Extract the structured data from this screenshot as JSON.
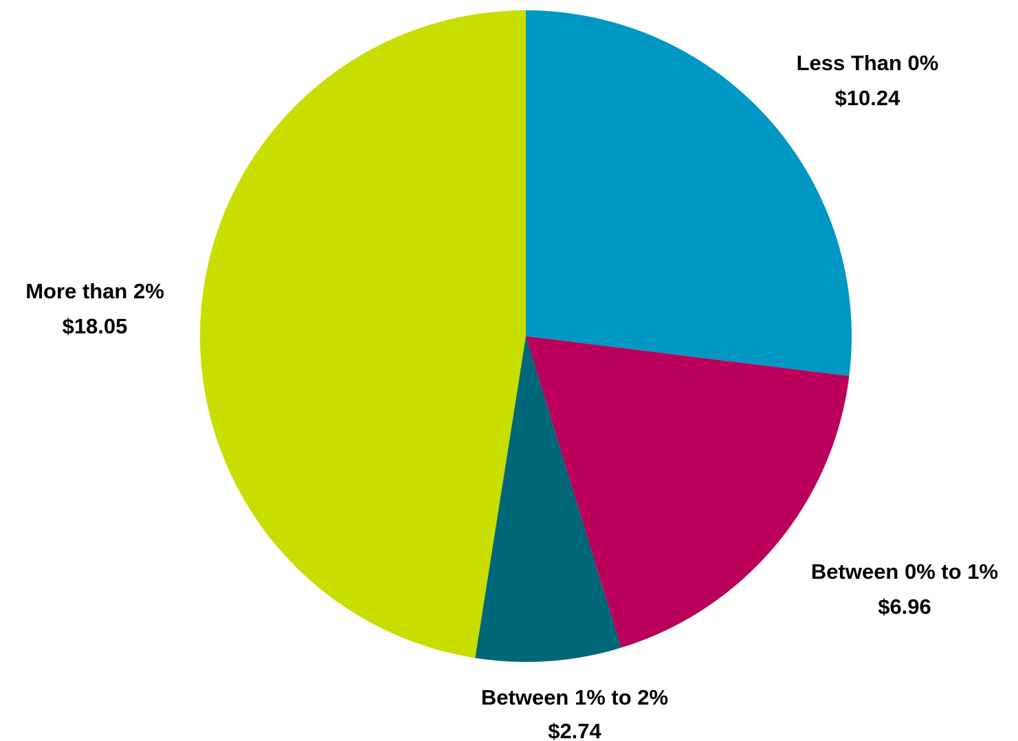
{
  "chart_data": {
    "type": "pie",
    "title": "",
    "slices": [
      {
        "label": "Less Than 0%",
        "value": 10.24,
        "value_label": "$10.24",
        "color": "#0098C3"
      },
      {
        "label": "Between 0% to 1%",
        "value": 6.96,
        "value_label": "$6.96",
        "color": "#BB005C"
      },
      {
        "label": "Between 1% to 2%",
        "value": 2.74,
        "value_label": "$2.74",
        "color": "#006778"
      },
      {
        "label": "More than 2%",
        "value": 18.05,
        "value_label": "$18.05",
        "color": "#C8DD00"
      }
    ],
    "start_angle": "12 o'clock",
    "direction": "clockwise",
    "legend": "none"
  }
}
